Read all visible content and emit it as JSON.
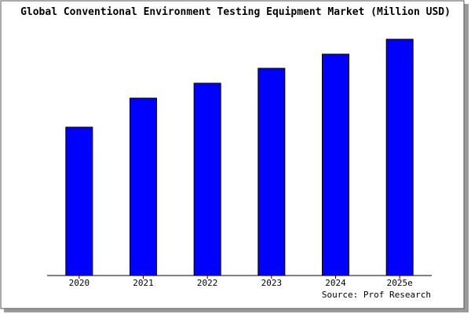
{
  "chart_data": {
    "type": "bar",
    "title": "Global Conventional Environment Testing Equipment Market (Million USD)",
    "categories": [
      "2020",
      "2021",
      "2022",
      "2023",
      "2024",
      "2025e"
    ],
    "values": [
      189,
      226,
      245,
      264,
      282,
      301
    ],
    "color": "#0000ff",
    "source": "Source: Prof Research"
  }
}
